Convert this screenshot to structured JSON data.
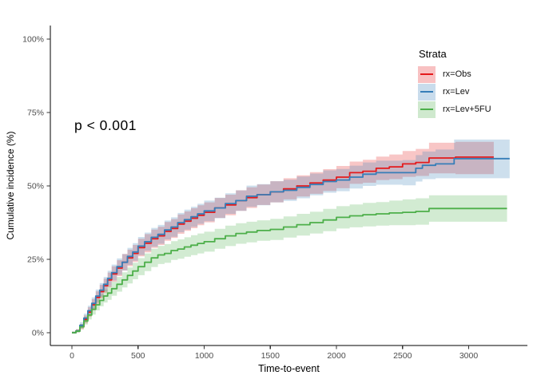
{
  "figure": {
    "annotation_pvalue": "p < 0.001",
    "x_axis_title": "Time-to-event",
    "y_axis_title": "Cumulative incidence (%)"
  },
  "legend": {
    "title": "Strata",
    "items": [
      {
        "label": "rx=Obs",
        "color": "#E41A1C",
        "band": "rgba(228,26,28,0.27)"
      },
      {
        "label": "rx=Lev",
        "color": "#377EB8",
        "band": "rgba(55,126,184,0.27)"
      },
      {
        "label": "rx=Lev+5FU",
        "color": "#4DAF4A",
        "band": "rgba(77,175,74,0.27)"
      }
    ]
  },
  "chart_data": {
    "type": "line",
    "subtype": "step-cumulative-incidence-with-ci-ribbons",
    "title": "",
    "xlabel": "Time-to-event",
    "ylabel": "Cumulative incidence (%)",
    "annotation": "p < 0.001",
    "grid": false,
    "legend_position": "inside-top-right",
    "xlim": [
      -150,
      3450
    ],
    "ylim": [
      0,
      105
    ],
    "x_ticks": [
      0,
      500,
      1000,
      1500,
      2000,
      2500,
      3000
    ],
    "x_tick_labels": [
      "0",
      "500",
      "1000",
      "1500",
      "2000",
      "2500",
      "3000"
    ],
    "y_ticks": [
      0,
      25,
      50,
      75,
      100
    ],
    "y_tick_labels": [
      "0%",
      "25%",
      "50%",
      "75%",
      "100%"
    ],
    "axis_text_color": "#4d4d4d",
    "axis_line_color": "#000000",
    "series": [
      {
        "name": "rx=Obs",
        "color": "#E41A1C",
        "band_color": "rgba(228,26,28,0.25)",
        "points_format": [
          "time",
          "estimate_pct",
          "ci_lower_pct",
          "ci_upper_pct"
        ],
        "points": [
          [
            0,
            0,
            0,
            0.4
          ],
          [
            30,
            0.6,
            0.2,
            1.2
          ],
          [
            60,
            2,
            1.2,
            3
          ],
          [
            90,
            4.5,
            3.2,
            5.9
          ],
          [
            120,
            7,
            5.4,
            8.7
          ],
          [
            150,
            9.5,
            7.6,
            11.4
          ],
          [
            180,
            12,
            9.9,
            14.1
          ],
          [
            210,
            14,
            11.7,
            16.3
          ],
          [
            240,
            16,
            13.6,
            18.4
          ],
          [
            270,
            18,
            15.5,
            20.5
          ],
          [
            300,
            20,
            17.4,
            22.6
          ],
          [
            340,
            22,
            19.3,
            24.7
          ],
          [
            380,
            24,
            21.2,
            26.8
          ],
          [
            420,
            25.5,
            22.7,
            28.3
          ],
          [
            460,
            27,
            24.1,
            29.9
          ],
          [
            500,
            29,
            26,
            32
          ],
          [
            550,
            30.5,
            27.4,
            33.6
          ],
          [
            600,
            32,
            28.9,
            35.1
          ],
          [
            650,
            33,
            29.9,
            36.1
          ],
          [
            700,
            34.5,
            31.3,
            37.7
          ],
          [
            750,
            35.5,
            32.3,
            38.7
          ],
          [
            800,
            37,
            33.7,
            40.3
          ],
          [
            850,
            38,
            34.7,
            41.3
          ],
          [
            900,
            39,
            35.6,
            42.4
          ],
          [
            950,
            40,
            36.6,
            43.4
          ],
          [
            1000,
            41,
            37.6,
            44.4
          ],
          [
            1080,
            42.5,
            39.1,
            45.9
          ],
          [
            1160,
            43.5,
            40,
            47
          ],
          [
            1240,
            45,
            41.5,
            48.5
          ],
          [
            1320,
            46,
            42.5,
            49.5
          ],
          [
            1400,
            47,
            43.5,
            50.5
          ],
          [
            1500,
            48,
            44.4,
            51.6
          ],
          [
            1600,
            49,
            45.4,
            52.6
          ],
          [
            1700,
            50,
            46.4,
            53.6
          ],
          [
            1800,
            51,
            47.3,
            54.7
          ],
          [
            1900,
            52,
            48.3,
            55.7
          ],
          [
            2000,
            53,
            49.2,
            56.8
          ],
          [
            2100,
            54.5,
            50.7,
            58.3
          ],
          [
            2200,
            55,
            51.1,
            58.9
          ],
          [
            2300,
            56,
            52,
            60
          ],
          [
            2400,
            56.5,
            52.3,
            60.7
          ],
          [
            2500,
            57.5,
            53.1,
            61.9
          ],
          [
            2600,
            58,
            53.4,
            62.6
          ],
          [
            2700,
            59.5,
            54.3,
            64.7
          ],
          [
            2900,
            59.8,
            54,
            65
          ],
          [
            3190,
            59.8,
            54,
            65
          ]
        ]
      },
      {
        "name": "rx=Lev",
        "color": "#377EB8",
        "band_color": "rgba(55,126,184,0.25)",
        "points_format": [
          "time",
          "estimate_pct",
          "ci_lower_pct",
          "ci_upper_pct"
        ],
        "points": [
          [
            0,
            0,
            0,
            0.4
          ],
          [
            30,
            0.6,
            0.2,
            1.2
          ],
          [
            60,
            2.5,
            1.6,
            3.6
          ],
          [
            90,
            5,
            3.7,
            6.5
          ],
          [
            120,
            7.5,
            5.9,
            9.2
          ],
          [
            150,
            10,
            8.1,
            12
          ],
          [
            180,
            12.5,
            10.4,
            14.7
          ],
          [
            210,
            14.5,
            12.2,
            16.9
          ],
          [
            240,
            16.5,
            14,
            19
          ],
          [
            270,
            18.5,
            15.9,
            21.1
          ],
          [
            300,
            20.5,
            17.8,
            23.2
          ],
          [
            340,
            22.5,
            19.7,
            25.3
          ],
          [
            380,
            24,
            21.2,
            26.8
          ],
          [
            420,
            26,
            23.1,
            28.9
          ],
          [
            460,
            27.5,
            24.5,
            30.5
          ],
          [
            500,
            29.5,
            26.4,
            32.6
          ],
          [
            550,
            31,
            27.9,
            34.1
          ],
          [
            600,
            32.5,
            29.3,
            35.7
          ],
          [
            650,
            33.5,
            30.3,
            36.7
          ],
          [
            700,
            35,
            31.8,
            38.2
          ],
          [
            750,
            36,
            32.7,
            39.3
          ],
          [
            800,
            37.5,
            34.2,
            40.8
          ],
          [
            850,
            38.5,
            35.1,
            41.9
          ],
          [
            900,
            39.5,
            36.1,
            42.9
          ],
          [
            950,
            40.5,
            37.1,
            43.9
          ],
          [
            1000,
            41.5,
            38,
            45
          ],
          [
            1080,
            42.5,
            39,
            46
          ],
          [
            1160,
            44,
            40.5,
            47.5
          ],
          [
            1240,
            45,
            41.5,
            48.5
          ],
          [
            1320,
            46.5,
            42.9,
            50.1
          ],
          [
            1400,
            47,
            43.4,
            50.6
          ],
          [
            1500,
            48,
            44.4,
            51.6
          ],
          [
            1600,
            48.5,
            44.9,
            52.1
          ],
          [
            1700,
            49.5,
            45.8,
            53.2
          ],
          [
            1800,
            50.5,
            46.8,
            54.2
          ],
          [
            1900,
            51.5,
            47.7,
            55.3
          ],
          [
            2000,
            52,
            48.2,
            55.8
          ],
          [
            2100,
            53,
            49.1,
            56.9
          ],
          [
            2200,
            54,
            50,
            58
          ],
          [
            2300,
            54.5,
            50.4,
            58.6
          ],
          [
            2500,
            54.5,
            50.2,
            58.8
          ],
          [
            2600,
            56,
            51.5,
            60.5
          ],
          [
            2650,
            57,
            52.3,
            61.7
          ],
          [
            2750,
            57.5,
            52.6,
            62.4
          ],
          [
            2890,
            59.3,
            52.6,
            65.8
          ],
          [
            3310,
            59.3,
            52.6,
            65.8
          ]
        ]
      },
      {
        "name": "rx=Lev+5FU",
        "color": "#4DAF4A",
        "band_color": "rgba(77,175,74,0.25)",
        "points_format": [
          "time",
          "estimate_pct",
          "ci_lower_pct",
          "ci_upper_pct"
        ],
        "points": [
          [
            0,
            0,
            0,
            0.4
          ],
          [
            30,
            0.5,
            0.1,
            1.1
          ],
          [
            60,
            2,
            1.2,
            3
          ],
          [
            90,
            4,
            2.8,
            5.4
          ],
          [
            120,
            6,
            4.5,
            7.6
          ],
          [
            150,
            8,
            6.2,
            9.8
          ],
          [
            180,
            9.5,
            7.6,
            11.4
          ],
          [
            210,
            11,
            9,
            13.1
          ],
          [
            240,
            12.5,
            10.3,
            14.7
          ],
          [
            270,
            13.5,
            11.2,
            15.8
          ],
          [
            300,
            15,
            12.6,
            17.4
          ],
          [
            340,
            16.5,
            14,
            19
          ],
          [
            380,
            18,
            15.4,
            20.6
          ],
          [
            420,
            19.5,
            16.8,
            22.2
          ],
          [
            460,
            21,
            18.2,
            23.8
          ],
          [
            500,
            22.5,
            19.6,
            25.4
          ],
          [
            550,
            24,
            21,
            27
          ],
          [
            600,
            25.5,
            22.4,
            28.6
          ],
          [
            650,
            26.5,
            23.4,
            29.6
          ],
          [
            700,
            27,
            23.8,
            30.2
          ],
          [
            750,
            28,
            24.8,
            31.2
          ],
          [
            800,
            28.5,
            25.2,
            31.8
          ],
          [
            850,
            29.2,
            25.9,
            32.5
          ],
          [
            900,
            29.8,
            26.4,
            33.2
          ],
          [
            950,
            30.4,
            27,
            33.8
          ],
          [
            1000,
            31,
            27.6,
            34.4
          ],
          [
            1080,
            32,
            28.6,
            35.4
          ],
          [
            1160,
            33,
            29.5,
            36.5
          ],
          [
            1240,
            33.8,
            30.3,
            37.3
          ],
          [
            1320,
            34.3,
            30.8,
            37.8
          ],
          [
            1400,
            34.8,
            31.3,
            38.3
          ],
          [
            1500,
            35.2,
            31.6,
            38.8
          ],
          [
            1600,
            36,
            32.4,
            39.6
          ],
          [
            1700,
            36.8,
            33.1,
            40.5
          ],
          [
            1800,
            37.5,
            33.8,
            41.2
          ],
          [
            1900,
            38.4,
            34.6,
            42.2
          ],
          [
            2000,
            39.3,
            35.5,
            43.1
          ],
          [
            2100,
            39.8,
            35.9,
            43.7
          ],
          [
            2200,
            40.2,
            36.2,
            44.2
          ],
          [
            2300,
            40.5,
            36.5,
            44.5
          ],
          [
            2400,
            40.8,
            36.6,
            45
          ],
          [
            2500,
            41,
            36.6,
            45.4
          ],
          [
            2600,
            41.3,
            36.8,
            45.8
          ],
          [
            2700,
            42.3,
            37.8,
            46.8
          ],
          [
            3290,
            42.3,
            37.8,
            46.8
          ]
        ]
      }
    ]
  }
}
